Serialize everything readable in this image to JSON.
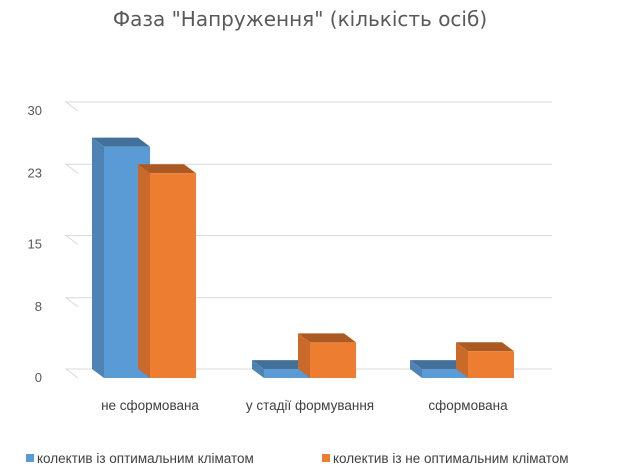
{
  "chart_data": {
    "type": "bar",
    "title": "Фаза \"Напруження\" (кількість осіб)",
    "categories": [
      "не сформована",
      "у стадії формування",
      "сформована"
    ],
    "series": [
      {
        "name": "колектив із оптимальним кліматом",
        "values": [
          26,
          1,
          1
        ],
        "color": "#5b9bd5"
      },
      {
        "name": "колектив із не оптимальним кліматом",
        "values": [
          23,
          4,
          3
        ],
        "color": "#ed7d31"
      }
    ],
    "yticks": [
      "0",
      "8",
      "15",
      "23",
      "30"
    ],
    "ylim": [
      0,
      30
    ],
    "grid": true,
    "legend": "bottom",
    "three_d": true
  }
}
